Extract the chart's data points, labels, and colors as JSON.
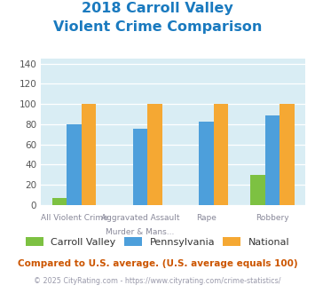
{
  "title_line1": "2018 Carroll Valley",
  "title_line2": "Violent Crime Comparison",
  "title_color": "#1a7abf",
  "cat_labels_top": [
    "",
    "Aggravated Assault",
    "",
    ""
  ],
  "cat_labels_bot": [
    "All Violent Crime",
    "Murder & Mans...",
    "Rape",
    "Robbery"
  ],
  "series": {
    "Carroll Valley": [
      7,
      0,
      0,
      30
    ],
    "Pennsylvania": [
      80,
      76,
      83,
      89
    ],
    "National": [
      100,
      100,
      100,
      100
    ]
  },
  "colors": {
    "Carroll Valley": "#7dc142",
    "Pennsylvania": "#4d9fdb",
    "National": "#f5a833"
  },
  "ylim": [
    0,
    145
  ],
  "yticks": [
    0,
    20,
    40,
    60,
    80,
    100,
    120,
    140
  ],
  "bar_width": 0.22,
  "group_positions": [
    0,
    1,
    2,
    3
  ],
  "plot_bg_color": "#d9edf4",
  "footer_text1": "Compared to U.S. average. (U.S. average equals 100)",
  "footer_text2": "© 2025 CityRating.com - https://www.cityrating.com/crime-statistics/",
  "footer_color1": "#cc5500",
  "footer_color2": "#9999aa",
  "legend_labels": [
    "Carroll Valley",
    "Pennsylvania",
    "National"
  ]
}
